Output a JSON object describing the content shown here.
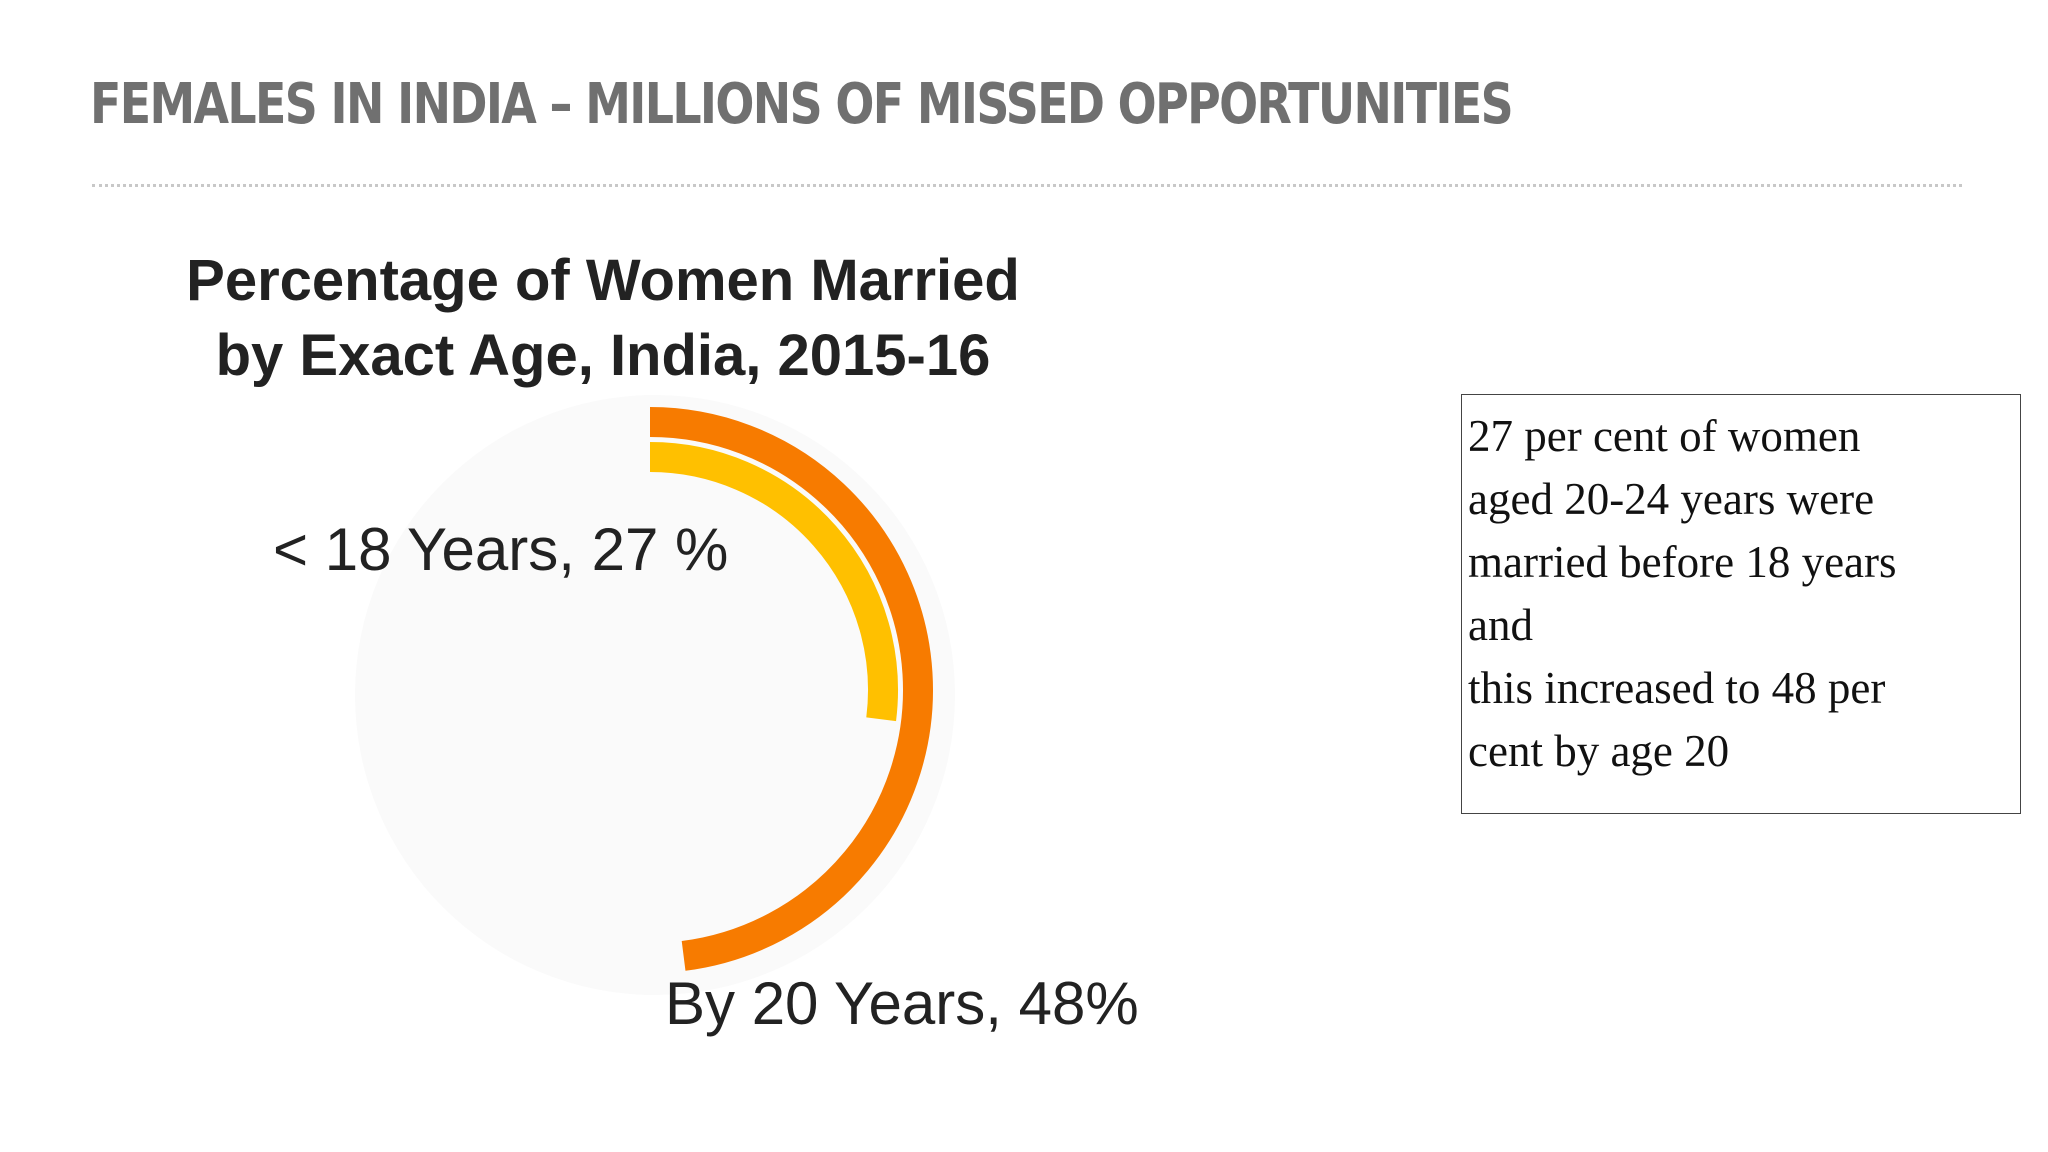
{
  "slide": {
    "title": "FEMALES IN INDIA – MILLIONS OF MISSED OPPORTUNITIES"
  },
  "chart_data": {
    "type": "radial-bar",
    "title": "Percentage of Women Married by Exact Age, India, 2015-16",
    "title_lines": [
      "Percentage of Women Married",
      "by Exact Age, India, 2015-16"
    ],
    "unit": "%",
    "max": 100,
    "start": "top",
    "direction": "clockwise",
    "series": [
      {
        "label": "< 18 Years, 27 %",
        "value": 27,
        "color": "#ffc000",
        "ring": "inner"
      },
      {
        "label": "By 20 Years, 48%",
        "value": 48,
        "color": "#f77b00",
        "ring": "outer"
      }
    ]
  },
  "note": {
    "lines": [
      "27 per cent of women",
      "aged 20-24 years were",
      "married before 18 years",
      "and",
      "this increased to 48 per",
      "cent by age 20"
    ]
  }
}
